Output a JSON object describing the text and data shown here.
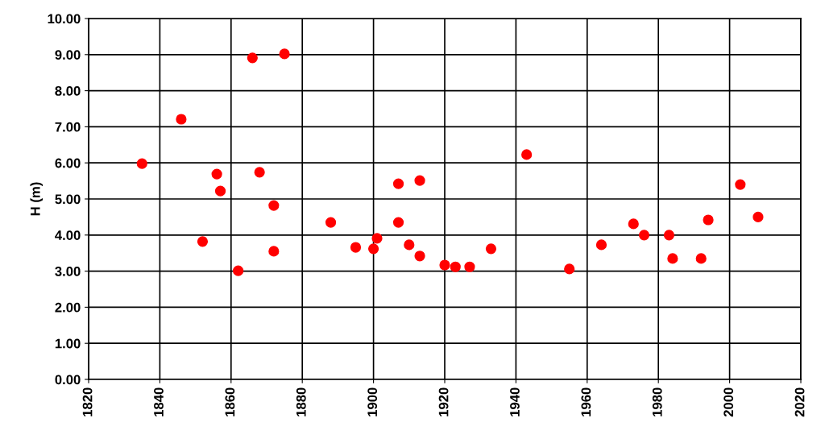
{
  "chart_data": {
    "type": "scatter",
    "ylabel": "H (m)",
    "x": [
      1835,
      1846,
      1852,
      1856,
      1857,
      1862,
      1866,
      1875,
      1868,
      1872,
      1872,
      1888,
      1895,
      1900,
      1901,
      1907,
      1907,
      1910,
      1913,
      1913,
      1920,
      1923,
      1927,
      1933,
      1943,
      1955,
      1964,
      1973,
      1976,
      1983,
      1984,
      1992,
      1994,
      2003,
      2008
    ],
    "series": [
      {
        "color": "#ff0000",
        "values": [
          5.98,
          7.21,
          3.82,
          5.69,
          5.22,
          3.01,
          8.91,
          9.02,
          5.74,
          4.82,
          3.55,
          4.35,
          3.66,
          3.62,
          3.91,
          5.42,
          4.35,
          3.73,
          3.42,
          5.51,
          3.17,
          3.12,
          3.12,
          3.62,
          6.23,
          3.06,
          3.73,
          4.31,
          4.0,
          4.0,
          3.35,
          3.35,
          4.42,
          5.4,
          4.5
        ]
      }
    ],
    "xlim": [
      1820,
      2020
    ],
    "xticks": [
      1820,
      1840,
      1860,
      1880,
      1900,
      1920,
      1940,
      1960,
      1980,
      2000,
      2020
    ],
    "ylim": [
      0,
      10
    ],
    "yticks": [
      {
        "value": 0,
        "label": "0.00"
      },
      {
        "value": 1,
        "label": "1.00"
      },
      {
        "value": 2,
        "label": "2.00"
      },
      {
        "value": 3,
        "label": "3.00"
      },
      {
        "value": 4,
        "label": "4.00"
      },
      {
        "value": 5,
        "label": "5.00"
      },
      {
        "value": 6,
        "label": "6.00"
      },
      {
        "value": 7,
        "label": "7.00"
      },
      {
        "value": 8,
        "label": "8.00"
      },
      {
        "value": 9,
        "label": "9.00"
      },
      {
        "value": 10,
        "label": "10.00"
      }
    ],
    "grid": true,
    "marker": "circle",
    "legend": false
  }
}
